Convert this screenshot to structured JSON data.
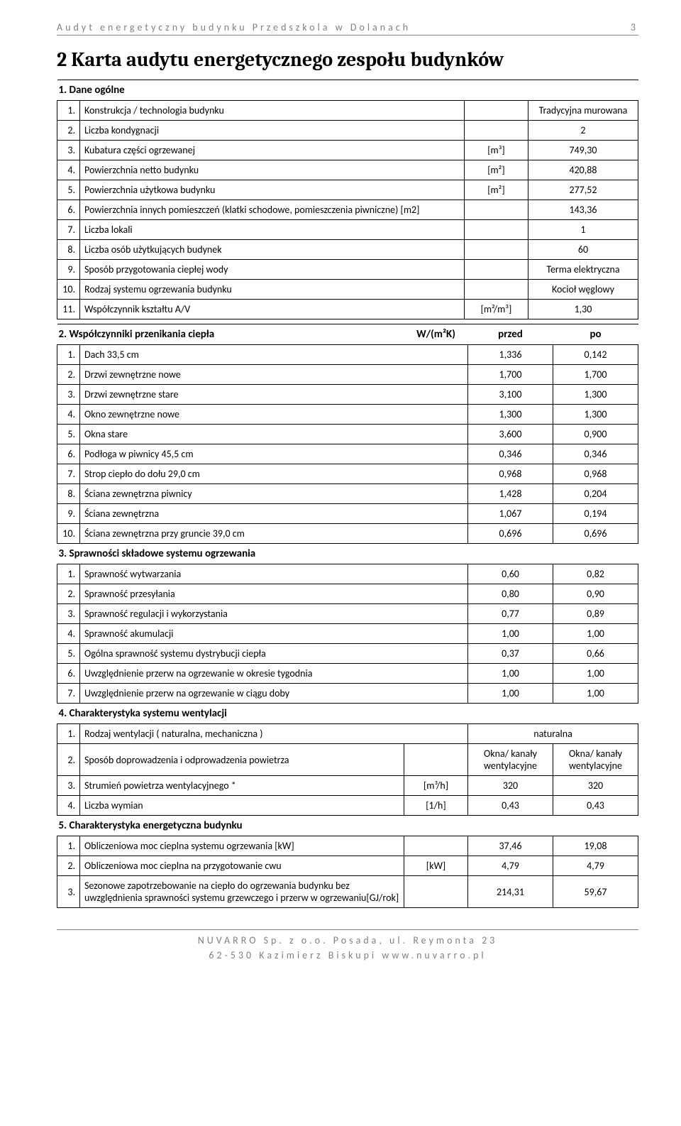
{
  "header": {
    "title": "Audyt energetyczny budynku Przedszkola w Dolanach",
    "pageNumber": "3"
  },
  "mainTitle": "2  Karta audytu energetycznego zespołu budynków",
  "section1": {
    "heading": "1. Dane ogólne",
    "rows": [
      {
        "n": "1.",
        "label": "Konstrukcja / technologia budynku",
        "unit": "",
        "value": "Tradycyjna murowana"
      },
      {
        "n": "2.",
        "label": "Liczba kondygnacji",
        "unit": "",
        "value": "2"
      },
      {
        "n": "3.",
        "label": "Kubatura części ogrzewanej",
        "unit": "[m³]",
        "value": "749,30"
      },
      {
        "n": "4.",
        "label": "Powierzchnia netto budynku",
        "unit": "[m²]",
        "value": "420,88"
      },
      {
        "n": "5.",
        "label": "Powierzchnia użytkowa budynku",
        "unit": "[m²]",
        "value": "277,52"
      },
      {
        "n": "6.",
        "label": "Powierzchnia innych pomieszczeń (klatki schodowe, pomieszczenia piwniczne) [m2]",
        "unit": "",
        "value": "143,36"
      },
      {
        "n": "7.",
        "label": "Liczba lokali",
        "unit": "",
        "value": "1"
      },
      {
        "n": "8.",
        "label": "Liczba osób użytkujących budynek",
        "unit": "",
        "value": "60"
      },
      {
        "n": "9.",
        "label": "Sposób przygotowania ciepłej wody",
        "unit": "",
        "value": "Terma elektryczna"
      },
      {
        "n": "10.",
        "label": "Rodzaj systemu ogrzewania budynku",
        "unit": "",
        "value": "Kocioł węglowy"
      },
      {
        "n": "11.",
        "label": "Współczynnik kształtu A/V",
        "unit": "[m²/m³]",
        "value": "1,30"
      }
    ]
  },
  "section2": {
    "heading": "2. Współczynniki przenikania ciepła",
    "unitHeading": "W/(m²K)",
    "before": "przed",
    "after": "po",
    "rows": [
      {
        "n": "1.",
        "label": "Dach 33,5 cm",
        "v1": "1,336",
        "v2": "0,142"
      },
      {
        "n": "2.",
        "label": "Drzwi zewnętrzne nowe",
        "v1": "1,700",
        "v2": "1,700"
      },
      {
        "n": "3.",
        "label": "Drzwi zewnętrzne stare",
        "v1": "3,100",
        "v2": "1,300"
      },
      {
        "n": "4.",
        "label": "Okno zewnętrzne nowe",
        "v1": "1,300",
        "v2": "1,300"
      },
      {
        "n": "5.",
        "label": "Okna stare",
        "v1": "3,600",
        "v2": "0,900"
      },
      {
        "n": "6.",
        "label": "Podłoga w piwnicy 45,5 cm",
        "v1": "0,346",
        "v2": "0,346"
      },
      {
        "n": "7.",
        "label": "Strop ciepło do dołu 29,0 cm",
        "v1": "0,968",
        "v2": "0,968"
      },
      {
        "n": "8.",
        "label": "Ściana zewnętrzna piwnicy",
        "v1": "1,428",
        "v2": "0,204"
      },
      {
        "n": "9.",
        "label": "Ściana zewnętrzna",
        "v1": "1,067",
        "v2": "0,194"
      },
      {
        "n": "10.",
        "label": "Ściana zewnętrzna przy gruncie 39,0 cm",
        "v1": "0,696",
        "v2": "0,696"
      }
    ]
  },
  "section3": {
    "heading": "3. Sprawności składowe systemu ogrzewania",
    "rows": [
      {
        "n": "1.",
        "label": "Sprawność wytwarzania",
        "v1": "0,60",
        "v2": "0,82"
      },
      {
        "n": "2.",
        "label": "Sprawność przesyłania",
        "v1": "0,80",
        "v2": "0,90"
      },
      {
        "n": "3.",
        "label": "Sprawność regulacji i wykorzystania",
        "v1": "0,77",
        "v2": "0,89"
      },
      {
        "n": "4.",
        "label": "Sprawność akumulacji",
        "v1": "1,00",
        "v2": "1,00"
      },
      {
        "n": "5.",
        "label": "Ogólna sprawność systemu dystrybucji ciepła",
        "v1": "0,37",
        "v2": "0,66"
      },
      {
        "n": "6.",
        "label": "Uwzględnienie przerw na ogrzewanie w okresie tygodnia",
        "v1": "1,00",
        "v2": "1,00"
      },
      {
        "n": "7.",
        "label": "Uwzględnienie przerw na ogrzewanie w ciągu doby",
        "v1": "1,00",
        "v2": "1,00"
      }
    ]
  },
  "section4": {
    "heading": "4. Charakterystyka systemu wentylacji",
    "rows": [
      {
        "n": "1.",
        "label": "Rodzaj wentylacji ( naturalna, mechaniczna )",
        "unit": "",
        "v1": "naturalna",
        "span2": true
      },
      {
        "n": "2.",
        "label": "Sposób doprowadzenia i odprowadzenia powietrza",
        "unit": "",
        "v1": "Okna/ kanały wentylacyjne",
        "v2": "Okna/ kanały wentylacyjne"
      },
      {
        "n": "3.",
        "label": "Strumień powietrza wentylacyjnego *",
        "unit": "[m³/h]",
        "v1": "320",
        "v2": "320"
      },
      {
        "n": "4.",
        "label": "Liczba wymian",
        "unit": "[1/h]",
        "v1": "0,43",
        "v2": "0,43"
      }
    ]
  },
  "section5": {
    "heading": "5. Charakterystyka energetyczna budynku",
    "rows": [
      {
        "n": "1.",
        "label": "Obliczeniowa moc cieplna systemu ogrzewania [kW]",
        "unit": "",
        "v1": "37,46",
        "v2": "19,08"
      },
      {
        "n": "2.",
        "label": "Obliczeniowa moc cieplna na przygotowanie cwu",
        "unit": "[kW]",
        "v1": "4,79",
        "v2": "4,79"
      },
      {
        "n": "3.",
        "label": "Sezonowe zapotrzebowanie na ciepło do ogrzewania budynku bez uwzględnienia sprawności systemu grzewczego i przerw w ogrzewaniu[GJ/rok]",
        "unit": "",
        "v1": "214,31",
        "v2": "59,67"
      }
    ]
  },
  "footer": {
    "line1": "NUVARRO Sp. z o.o. Posada, ul. Reymonta 23",
    "line2": "62-530 Kazimierz Biskupi www.nuvarro.pl"
  },
  "colors": {
    "border": "#000000",
    "grey": "#808080",
    "bg": "#ffffff"
  }
}
